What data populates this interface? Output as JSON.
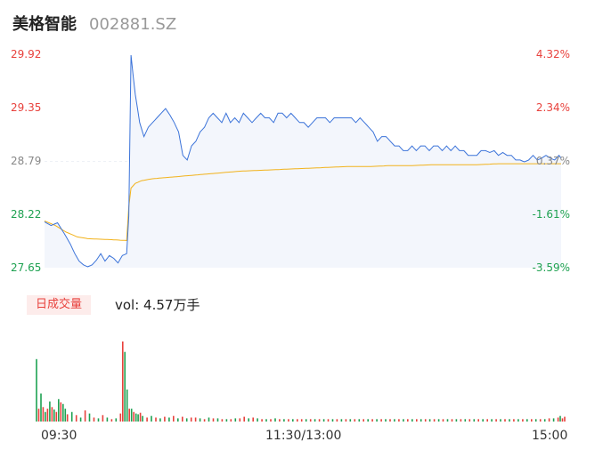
{
  "header": {
    "name": "美格智能",
    "code": "002881.SZ"
  },
  "price_axis": [
    {
      "price": "29.92",
      "pct": "4.32%",
      "cls": "up"
    },
    {
      "price": "29.35",
      "pct": "2.34%",
      "cls": "up"
    },
    {
      "price": "28.79",
      "pct": "0.37%",
      "cls": "flat"
    },
    {
      "price": "28.22",
      "pct": "-1.61%",
      "cls": "down"
    },
    {
      "price": "27.65",
      "pct": "-3.59%",
      "cls": "down"
    }
  ],
  "volume": {
    "label": "日成交量",
    "value": "vol: 4.57万手"
  },
  "time_axis": [
    "09:30",
    "11:30/13:00",
    "15:00"
  ],
  "colors": {
    "price": "#3b73d9",
    "avg": "#f2b21b",
    "up": "#e8413c",
    "down": "#1ea151",
    "fill": "#f3f6fc"
  },
  "chart_data": {
    "type": "line",
    "ylim": [
      27.65,
      29.92
    ],
    "points": 240,
    "price_keypoints": [
      [
        0,
        28.14
      ],
      [
        3,
        28.1
      ],
      [
        6,
        28.13
      ],
      [
        9,
        28.02
      ],
      [
        12,
        27.9
      ],
      [
        14,
        27.8
      ],
      [
        16,
        27.72
      ],
      [
        18,
        27.68
      ],
      [
        20,
        27.66
      ],
      [
        22,
        27.68
      ],
      [
        24,
        27.73
      ],
      [
        26,
        27.8
      ],
      [
        28,
        27.72
      ],
      [
        30,
        27.78
      ],
      [
        32,
        27.75
      ],
      [
        34,
        27.7
      ],
      [
        36,
        27.78
      ],
      [
        38,
        27.8
      ],
      [
        39,
        28.2
      ],
      [
        40,
        29.92
      ],
      [
        41,
        29.7
      ],
      [
        42,
        29.5
      ],
      [
        44,
        29.2
      ],
      [
        46,
        29.05
      ],
      [
        48,
        29.15
      ],
      [
        50,
        29.2
      ],
      [
        52,
        29.25
      ],
      [
        54,
        29.3
      ],
      [
        56,
        29.35
      ],
      [
        58,
        29.28
      ],
      [
        60,
        29.2
      ],
      [
        62,
        29.1
      ],
      [
        64,
        28.85
      ],
      [
        66,
        28.8
      ],
      [
        68,
        28.95
      ],
      [
        70,
        29.0
      ],
      [
        72,
        29.1
      ],
      [
        74,
        29.15
      ],
      [
        76,
        29.25
      ],
      [
        78,
        29.3
      ],
      [
        80,
        29.25
      ],
      [
        82,
        29.2
      ],
      [
        84,
        29.3
      ],
      [
        86,
        29.2
      ],
      [
        88,
        29.25
      ],
      [
        90,
        29.2
      ],
      [
        92,
        29.3
      ],
      [
        94,
        29.25
      ],
      [
        96,
        29.2
      ],
      [
        98,
        29.25
      ],
      [
        100,
        29.3
      ],
      [
        102,
        29.25
      ],
      [
        104,
        29.25
      ],
      [
        106,
        29.2
      ],
      [
        108,
        29.3
      ],
      [
        110,
        29.3
      ],
      [
        112,
        29.25
      ],
      [
        114,
        29.3
      ],
      [
        116,
        29.25
      ],
      [
        118,
        29.2
      ],
      [
        120,
        29.2
      ],
      [
        122,
        29.15
      ],
      [
        124,
        29.2
      ],
      [
        126,
        29.25
      ],
      [
        128,
        29.25
      ],
      [
        130,
        29.25
      ],
      [
        132,
        29.2
      ],
      [
        134,
        29.25
      ],
      [
        136,
        29.25
      ],
      [
        138,
        29.25
      ],
      [
        140,
        29.25
      ],
      [
        142,
        29.25
      ],
      [
        144,
        29.2
      ],
      [
        146,
        29.25
      ],
      [
        148,
        29.2
      ],
      [
        150,
        29.15
      ],
      [
        152,
        29.1
      ],
      [
        154,
        29.0
      ],
      [
        156,
        29.05
      ],
      [
        158,
        29.05
      ],
      [
        160,
        29.0
      ],
      [
        162,
        28.95
      ],
      [
        164,
        28.95
      ],
      [
        166,
        28.9
      ],
      [
        168,
        28.9
      ],
      [
        170,
        28.95
      ],
      [
        172,
        28.9
      ],
      [
        174,
        28.95
      ],
      [
        176,
        28.95
      ],
      [
        178,
        28.9
      ],
      [
        180,
        28.95
      ],
      [
        182,
        28.95
      ],
      [
        184,
        28.9
      ],
      [
        186,
        28.95
      ],
      [
        188,
        28.9
      ],
      [
        190,
        28.95
      ],
      [
        192,
        28.9
      ],
      [
        194,
        28.9
      ],
      [
        196,
        28.85
      ],
      [
        198,
        28.85
      ],
      [
        200,
        28.85
      ],
      [
        202,
        28.9
      ],
      [
        204,
        28.9
      ],
      [
        206,
        28.88
      ],
      [
        208,
        28.9
      ],
      [
        210,
        28.85
      ],
      [
        212,
        28.88
      ],
      [
        214,
        28.85
      ],
      [
        216,
        28.85
      ],
      [
        218,
        28.8
      ],
      [
        220,
        28.8
      ],
      [
        222,
        28.78
      ],
      [
        224,
        28.8
      ],
      [
        226,
        28.85
      ],
      [
        228,
        28.8
      ],
      [
        230,
        28.82
      ],
      [
        232,
        28.85
      ],
      [
        234,
        28.82
      ],
      [
        236,
        28.8
      ],
      [
        238,
        28.85
      ],
      [
        239,
        28.82
      ]
    ],
    "avg_keypoints": [
      [
        0,
        28.15
      ],
      [
        5,
        28.1
      ],
      [
        10,
        28.03
      ],
      [
        15,
        27.98
      ],
      [
        20,
        27.96
      ],
      [
        30,
        27.95
      ],
      [
        38,
        27.94
      ],
      [
        39,
        28.3
      ],
      [
        40,
        28.5
      ],
      [
        42,
        28.55
      ],
      [
        45,
        28.58
      ],
      [
        50,
        28.6
      ],
      [
        60,
        28.62
      ],
      [
        70,
        28.64
      ],
      [
        80,
        28.66
      ],
      [
        90,
        28.68
      ],
      [
        100,
        28.69
      ],
      [
        110,
        28.7
      ],
      [
        120,
        28.71
      ],
      [
        130,
        28.72
      ],
      [
        140,
        28.73
      ],
      [
        150,
        28.73
      ],
      [
        160,
        28.74
      ],
      [
        170,
        28.74
      ],
      [
        180,
        28.75
      ],
      [
        190,
        28.75
      ],
      [
        200,
        28.75
      ],
      [
        210,
        28.76
      ],
      [
        220,
        28.76
      ],
      [
        230,
        28.76
      ],
      [
        239,
        28.76
      ]
    ],
    "volume_bars": [
      [
        0,
        0.78,
        "down"
      ],
      [
        1,
        0.16,
        "up"
      ],
      [
        2,
        0.35,
        "down"
      ],
      [
        3,
        0.18,
        "up"
      ],
      [
        4,
        0.12,
        "down"
      ],
      [
        5,
        0.16,
        "up"
      ],
      [
        6,
        0.25,
        "down"
      ],
      [
        7,
        0.18,
        "up"
      ],
      [
        8,
        0.15,
        "down"
      ],
      [
        9,
        0.12,
        "up"
      ],
      [
        10,
        0.28,
        "down"
      ],
      [
        11,
        0.24,
        "up"
      ],
      [
        12,
        0.22,
        "down"
      ],
      [
        13,
        0.16,
        "down"
      ],
      [
        14,
        0.09,
        "up"
      ],
      [
        16,
        0.12,
        "down"
      ],
      [
        18,
        0.08,
        "up"
      ],
      [
        20,
        0.05,
        "down"
      ],
      [
        22,
        0.14,
        "up"
      ],
      [
        24,
        0.1,
        "down"
      ],
      [
        26,
        0.05,
        "up"
      ],
      [
        28,
        0.04,
        "down"
      ],
      [
        30,
        0.08,
        "up"
      ],
      [
        32,
        0.05,
        "down"
      ],
      [
        34,
        0.03,
        "up"
      ],
      [
        36,
        0.04,
        "down"
      ],
      [
        38,
        0.1,
        "up"
      ],
      [
        39,
        1.0,
        "up"
      ],
      [
        40,
        0.87,
        "down"
      ],
      [
        41,
        0.4,
        "down"
      ],
      [
        42,
        0.16,
        "up"
      ],
      [
        43,
        0.16,
        "down"
      ],
      [
        44,
        0.12,
        "up"
      ],
      [
        45,
        0.1,
        "down"
      ],
      [
        46,
        0.09,
        "down"
      ],
      [
        47,
        0.11,
        "up"
      ],
      [
        48,
        0.07,
        "down"
      ],
      [
        50,
        0.05,
        "up"
      ],
      [
        52,
        0.07,
        "down"
      ],
      [
        54,
        0.05,
        "up"
      ],
      [
        56,
        0.04,
        "down"
      ],
      [
        58,
        0.06,
        "up"
      ],
      [
        60,
        0.05,
        "down"
      ],
      [
        62,
        0.07,
        "up"
      ],
      [
        64,
        0.04,
        "down"
      ],
      [
        66,
        0.06,
        "up"
      ],
      [
        68,
        0.04,
        "down"
      ],
      [
        70,
        0.05,
        "up"
      ],
      [
        72,
        0.05,
        "up"
      ],
      [
        74,
        0.04,
        "down"
      ],
      [
        76,
        0.03,
        "up"
      ],
      [
        78,
        0.05,
        "down"
      ],
      [
        80,
        0.04,
        "up"
      ],
      [
        82,
        0.04,
        "down"
      ],
      [
        84,
        0.03,
        "up"
      ],
      [
        86,
        0.03,
        "down"
      ],
      [
        88,
        0.03,
        "up"
      ],
      [
        90,
        0.04,
        "down"
      ],
      [
        92,
        0.04,
        "up"
      ],
      [
        94,
        0.06,
        "up"
      ],
      [
        96,
        0.04,
        "down"
      ],
      [
        98,
        0.05,
        "up"
      ],
      [
        100,
        0.04,
        "down"
      ],
      [
        102,
        0.03,
        "up"
      ],
      [
        104,
        0.03,
        "down"
      ],
      [
        106,
        0.03,
        "up"
      ],
      [
        108,
        0.04,
        "down"
      ],
      [
        110,
        0.03,
        "up"
      ],
      [
        112,
        0.03,
        "down"
      ],
      [
        114,
        0.03,
        "up"
      ],
      [
        116,
        0.03,
        "down"
      ],
      [
        118,
        0.03,
        "up"
      ],
      [
        120,
        0.03,
        "up"
      ],
      [
        122,
        0.03,
        "down"
      ],
      [
        124,
        0.03,
        "up"
      ],
      [
        126,
        0.03,
        "down"
      ],
      [
        128,
        0.03,
        "up"
      ],
      [
        130,
        0.03,
        "down"
      ],
      [
        132,
        0.03,
        "up"
      ],
      [
        134,
        0.03,
        "down"
      ],
      [
        136,
        0.03,
        "up"
      ],
      [
        138,
        0.03,
        "down"
      ],
      [
        140,
        0.03,
        "up"
      ],
      [
        142,
        0.03,
        "down"
      ],
      [
        144,
        0.03,
        "up"
      ],
      [
        146,
        0.03,
        "down"
      ],
      [
        148,
        0.03,
        "up"
      ],
      [
        150,
        0.03,
        "down"
      ],
      [
        152,
        0.03,
        "up"
      ],
      [
        154,
        0.03,
        "down"
      ],
      [
        156,
        0.03,
        "up"
      ],
      [
        158,
        0.03,
        "down"
      ],
      [
        160,
        0.03,
        "up"
      ],
      [
        162,
        0.03,
        "down"
      ],
      [
        164,
        0.03,
        "up"
      ],
      [
        166,
        0.03,
        "down"
      ],
      [
        168,
        0.03,
        "up"
      ],
      [
        170,
        0.03,
        "down"
      ],
      [
        172,
        0.03,
        "up"
      ],
      [
        174,
        0.03,
        "down"
      ],
      [
        176,
        0.03,
        "up"
      ],
      [
        178,
        0.03,
        "down"
      ],
      [
        180,
        0.03,
        "up"
      ],
      [
        182,
        0.03,
        "down"
      ],
      [
        184,
        0.03,
        "up"
      ],
      [
        186,
        0.03,
        "down"
      ],
      [
        188,
        0.03,
        "up"
      ],
      [
        190,
        0.03,
        "down"
      ],
      [
        192,
        0.03,
        "up"
      ],
      [
        194,
        0.03,
        "down"
      ],
      [
        196,
        0.03,
        "up"
      ],
      [
        198,
        0.03,
        "down"
      ],
      [
        200,
        0.03,
        "up"
      ],
      [
        202,
        0.03,
        "down"
      ],
      [
        204,
        0.03,
        "up"
      ],
      [
        206,
        0.03,
        "down"
      ],
      [
        208,
        0.03,
        "up"
      ],
      [
        210,
        0.03,
        "down"
      ],
      [
        212,
        0.03,
        "up"
      ],
      [
        214,
        0.03,
        "down"
      ],
      [
        216,
        0.03,
        "up"
      ],
      [
        218,
        0.03,
        "down"
      ],
      [
        220,
        0.03,
        "up"
      ],
      [
        222,
        0.03,
        "down"
      ],
      [
        224,
        0.03,
        "up"
      ],
      [
        226,
        0.03,
        "down"
      ],
      [
        228,
        0.03,
        "up"
      ],
      [
        230,
        0.03,
        "down"
      ],
      [
        232,
        0.04,
        "up"
      ],
      [
        234,
        0.04,
        "down"
      ],
      [
        236,
        0.05,
        "up"
      ],
      [
        237,
        0.07,
        "down"
      ],
      [
        238,
        0.04,
        "up"
      ],
      [
        239,
        0.06,
        "up"
      ]
    ]
  }
}
